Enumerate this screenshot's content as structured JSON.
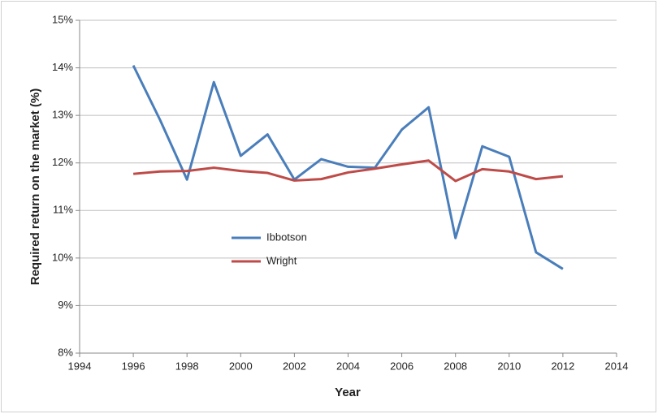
{
  "chart_data": {
    "type": "line",
    "x_label": "Year",
    "y_label": "Required return on the market (%)",
    "x": [
      1996,
      1997,
      1998,
      1999,
      2000,
      2001,
      2002,
      2003,
      2004,
      2005,
      2006,
      2007,
      2008,
      2009,
      2010,
      2011,
      2012
    ],
    "series": [
      {
        "name": "Ibbotson",
        "color": "#4a7ebb",
        "values": [
          14.05,
          12.9,
          11.65,
          13.7,
          12.15,
          12.6,
          11.65,
          12.08,
          11.92,
          11.9,
          12.7,
          13.17,
          10.42,
          12.35,
          12.13,
          10.12,
          9.77
        ]
      },
      {
        "name": "Wright",
        "color": "#be4b48",
        "values": [
          11.77,
          11.82,
          11.83,
          11.9,
          11.83,
          11.79,
          11.63,
          11.66,
          11.8,
          11.88,
          11.97,
          12.05,
          11.62,
          11.87,
          11.82,
          11.66,
          11.72
        ]
      }
    ],
    "xlim": [
      1994,
      2014
    ],
    "xticks": [
      1994,
      1996,
      1998,
      2000,
      2002,
      2004,
      2006,
      2008,
      2010,
      2012,
      2014
    ],
    "ylim": [
      8,
      15
    ],
    "yticks": [
      {
        "value": 8,
        "label": "8%"
      },
      {
        "value": 9,
        "label": "9%"
      },
      {
        "value": 10,
        "label": "10%"
      },
      {
        "value": 11,
        "label": "11%"
      },
      {
        "value": 12,
        "label": "12%"
      },
      {
        "value": 13,
        "label": "13%"
      },
      {
        "value": 14,
        "label": "14%"
      },
      {
        "value": 15,
        "label": "15%"
      }
    ],
    "grid": true,
    "legend_position": "center-left"
  }
}
